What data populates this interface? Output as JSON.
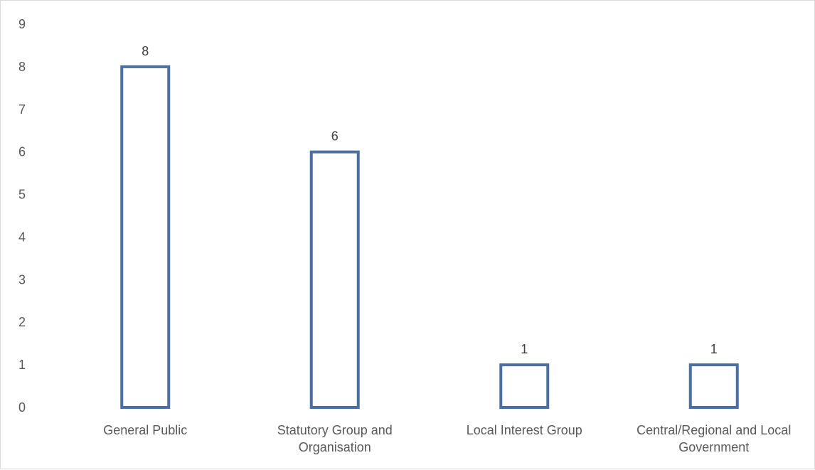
{
  "chart_data": {
    "type": "bar",
    "categories": [
      [
        "General Public"
      ],
      [
        "Statutory Group and",
        "Organisation"
      ],
      [
        "Local Interest Group"
      ],
      [
        "Central/Regional and Local",
        "Government"
      ]
    ],
    "values": [
      8,
      6,
      1,
      1
    ],
    "data_labels": [
      "8",
      "6",
      "1",
      "1"
    ],
    "ylim": [
      0,
      9
    ],
    "yticks": [
      "0",
      "1",
      "2",
      "3",
      "4",
      "5",
      "6",
      "7",
      "8",
      "9"
    ],
    "bar_style": "outline",
    "bar_color": "#4a6fa0",
    "grid": false,
    "legend": "none",
    "title": "",
    "xlabel": "",
    "ylabel": ""
  }
}
